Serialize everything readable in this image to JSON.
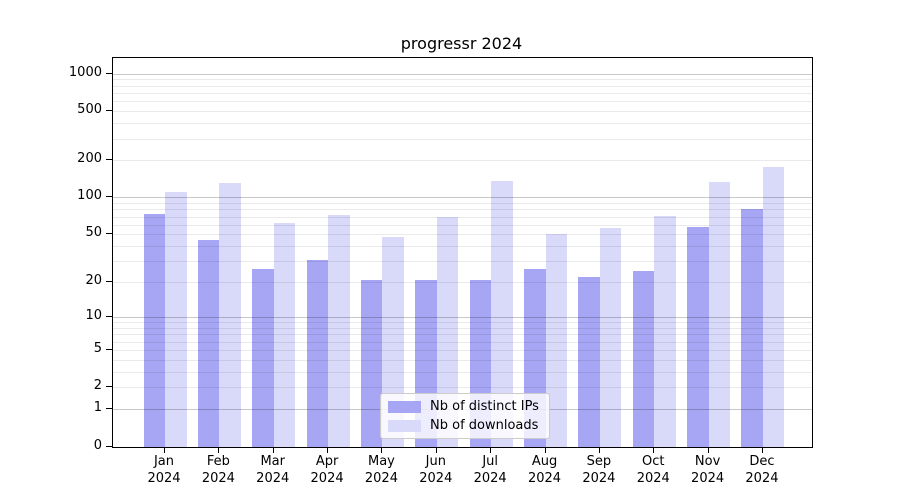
{
  "title": "progressr 2024",
  "chart_data": {
    "type": "bar",
    "title": "progressr 2024",
    "xlabel": "",
    "ylabel": "",
    "yscale": "log1p",
    "ylim": [
      0,
      1335
    ],
    "grid": "horizontal, major gridlines at 1/10/100/1000, faint minors",
    "legend_position": "lower center",
    "year": "2024",
    "categories": [
      "Jan",
      "Feb",
      "Mar",
      "Apr",
      "May",
      "Jun",
      "Jul",
      "Aug",
      "Sep",
      "Oct",
      "Nov",
      "Dec"
    ],
    "yticks": [
      {
        "value": 1000,
        "label": "1000"
      },
      {
        "value": 500,
        "label": "500"
      },
      {
        "value": 200,
        "label": "200"
      },
      {
        "value": 100,
        "label": "100"
      },
      {
        "value": 50,
        "label": "50"
      },
      {
        "value": 20,
        "label": "20"
      },
      {
        "value": 10,
        "label": "10"
      },
      {
        "value": 5,
        "label": "5"
      },
      {
        "value": 2,
        "label": "2"
      },
      {
        "value": 1,
        "label": "1"
      },
      {
        "value": 0,
        "label": "0"
      }
    ],
    "series": [
      {
        "name": "Nb of distinct IPs",
        "color": "#a6a6f4",
        "values": [
          73,
          45,
          26,
          31,
          21,
          21,
          21,
          26,
          22,
          25,
          58,
          80
        ]
      },
      {
        "name": "Nb of downloads",
        "color": "#d9d9fa",
        "values": [
          110,
          130,
          62,
          72,
          48,
          70,
          136,
          50,
          56,
          71,
          134,
          175
        ]
      }
    ]
  }
}
